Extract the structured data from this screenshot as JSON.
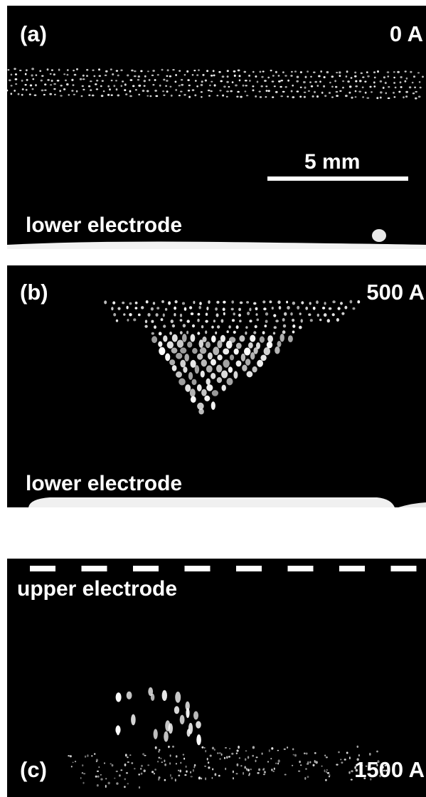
{
  "panels": [
    {
      "tag": "(a)",
      "current": "0 A",
      "electrode": "lower electrode",
      "scale_bar": "5 mm"
    },
    {
      "tag": "(b)",
      "current": "500 A",
      "electrode": "lower electrode"
    },
    {
      "tag": "(c)",
      "current": "1500 A",
      "electrode": "upper electrode"
    }
  ],
  "colors": {
    "background": "#000000",
    "particle": "#ffffff",
    "page": "#ffffff"
  }
}
